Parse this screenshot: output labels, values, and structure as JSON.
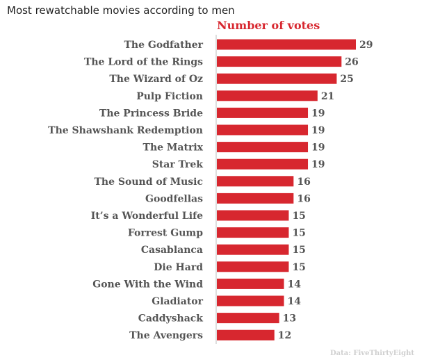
{
  "chart_data": {
    "type": "bar",
    "orientation": "horizontal",
    "title": "Most rewatchable movies according to men",
    "series": [
      {
        "name": "Number of votes",
        "color": "#d7272f",
        "values": [
          29,
          26,
          25,
          21,
          19,
          19,
          19,
          19,
          16,
          16,
          15,
          15,
          15,
          15,
          14,
          14,
          13,
          12
        ]
      }
    ],
    "categories": [
      "The Godfather",
      "The Lord of the Rings",
      "The Wizard of Oz",
      "Pulp Fiction",
      "The Princess Bride",
      "The Shawshank Redemption",
      "The Matrix",
      "Star Trek",
      "The Sound of Music",
      "Goodfellas",
      "It’s a Wonderful Life",
      "Forrest Gump",
      "Casablanca",
      "Die Hard",
      "Gone With the Wind",
      "Gladiator",
      "Caddyshack",
      "The Avengers"
    ],
    "xlim": [
      0,
      29
    ],
    "source": "Data: FiveThirtyEight",
    "label_color": "#555555",
    "grid": false
  }
}
